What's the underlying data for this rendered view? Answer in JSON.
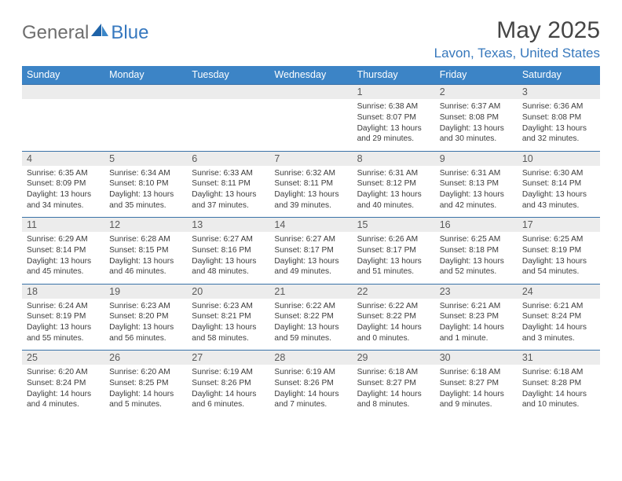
{
  "logo": {
    "general": "General",
    "blue": "Blue"
  },
  "title": "May 2025",
  "location": "Lavon, Texas, United States",
  "colors": {
    "header_bg": "#3c84c6",
    "header_text": "#ffffff",
    "daynum_bg": "#ececec",
    "daynum_border": "#3a72a8",
    "location_color": "#3778bc",
    "title_color": "#454545",
    "body_text": "#3c3c3c"
  },
  "day_headers": [
    "Sunday",
    "Monday",
    "Tuesday",
    "Wednesday",
    "Thursday",
    "Friday",
    "Saturday"
  ],
  "weeks": [
    {
      "nums": [
        "",
        "",
        "",
        "",
        "1",
        "2",
        "3"
      ],
      "cells": [
        {
          "empty": true
        },
        {
          "empty": true
        },
        {
          "empty": true
        },
        {
          "empty": true
        },
        {
          "sunrise": "Sunrise: 6:38 AM",
          "sunset": "Sunset: 8:07 PM",
          "daylight1": "Daylight: 13 hours",
          "daylight2": "and 29 minutes."
        },
        {
          "sunrise": "Sunrise: 6:37 AM",
          "sunset": "Sunset: 8:08 PM",
          "daylight1": "Daylight: 13 hours",
          "daylight2": "and 30 minutes."
        },
        {
          "sunrise": "Sunrise: 6:36 AM",
          "sunset": "Sunset: 8:08 PM",
          "daylight1": "Daylight: 13 hours",
          "daylight2": "and 32 minutes."
        }
      ]
    },
    {
      "nums": [
        "4",
        "5",
        "6",
        "7",
        "8",
        "9",
        "10"
      ],
      "cells": [
        {
          "sunrise": "Sunrise: 6:35 AM",
          "sunset": "Sunset: 8:09 PM",
          "daylight1": "Daylight: 13 hours",
          "daylight2": "and 34 minutes."
        },
        {
          "sunrise": "Sunrise: 6:34 AM",
          "sunset": "Sunset: 8:10 PM",
          "daylight1": "Daylight: 13 hours",
          "daylight2": "and 35 minutes."
        },
        {
          "sunrise": "Sunrise: 6:33 AM",
          "sunset": "Sunset: 8:11 PM",
          "daylight1": "Daylight: 13 hours",
          "daylight2": "and 37 minutes."
        },
        {
          "sunrise": "Sunrise: 6:32 AM",
          "sunset": "Sunset: 8:11 PM",
          "daylight1": "Daylight: 13 hours",
          "daylight2": "and 39 minutes."
        },
        {
          "sunrise": "Sunrise: 6:31 AM",
          "sunset": "Sunset: 8:12 PM",
          "daylight1": "Daylight: 13 hours",
          "daylight2": "and 40 minutes."
        },
        {
          "sunrise": "Sunrise: 6:31 AM",
          "sunset": "Sunset: 8:13 PM",
          "daylight1": "Daylight: 13 hours",
          "daylight2": "and 42 minutes."
        },
        {
          "sunrise": "Sunrise: 6:30 AM",
          "sunset": "Sunset: 8:14 PM",
          "daylight1": "Daylight: 13 hours",
          "daylight2": "and 43 minutes."
        }
      ]
    },
    {
      "nums": [
        "11",
        "12",
        "13",
        "14",
        "15",
        "16",
        "17"
      ],
      "cells": [
        {
          "sunrise": "Sunrise: 6:29 AM",
          "sunset": "Sunset: 8:14 PM",
          "daylight1": "Daylight: 13 hours",
          "daylight2": "and 45 minutes."
        },
        {
          "sunrise": "Sunrise: 6:28 AM",
          "sunset": "Sunset: 8:15 PM",
          "daylight1": "Daylight: 13 hours",
          "daylight2": "and 46 minutes."
        },
        {
          "sunrise": "Sunrise: 6:27 AM",
          "sunset": "Sunset: 8:16 PM",
          "daylight1": "Daylight: 13 hours",
          "daylight2": "and 48 minutes."
        },
        {
          "sunrise": "Sunrise: 6:27 AM",
          "sunset": "Sunset: 8:17 PM",
          "daylight1": "Daylight: 13 hours",
          "daylight2": "and 49 minutes."
        },
        {
          "sunrise": "Sunrise: 6:26 AM",
          "sunset": "Sunset: 8:17 PM",
          "daylight1": "Daylight: 13 hours",
          "daylight2": "and 51 minutes."
        },
        {
          "sunrise": "Sunrise: 6:25 AM",
          "sunset": "Sunset: 8:18 PM",
          "daylight1": "Daylight: 13 hours",
          "daylight2": "and 52 minutes."
        },
        {
          "sunrise": "Sunrise: 6:25 AM",
          "sunset": "Sunset: 8:19 PM",
          "daylight1": "Daylight: 13 hours",
          "daylight2": "and 54 minutes."
        }
      ]
    },
    {
      "nums": [
        "18",
        "19",
        "20",
        "21",
        "22",
        "23",
        "24"
      ],
      "cells": [
        {
          "sunrise": "Sunrise: 6:24 AM",
          "sunset": "Sunset: 8:19 PM",
          "daylight1": "Daylight: 13 hours",
          "daylight2": "and 55 minutes."
        },
        {
          "sunrise": "Sunrise: 6:23 AM",
          "sunset": "Sunset: 8:20 PM",
          "daylight1": "Daylight: 13 hours",
          "daylight2": "and 56 minutes."
        },
        {
          "sunrise": "Sunrise: 6:23 AM",
          "sunset": "Sunset: 8:21 PM",
          "daylight1": "Daylight: 13 hours",
          "daylight2": "and 58 minutes."
        },
        {
          "sunrise": "Sunrise: 6:22 AM",
          "sunset": "Sunset: 8:22 PM",
          "daylight1": "Daylight: 13 hours",
          "daylight2": "and 59 minutes."
        },
        {
          "sunrise": "Sunrise: 6:22 AM",
          "sunset": "Sunset: 8:22 PM",
          "daylight1": "Daylight: 14 hours",
          "daylight2": "and 0 minutes."
        },
        {
          "sunrise": "Sunrise: 6:21 AM",
          "sunset": "Sunset: 8:23 PM",
          "daylight1": "Daylight: 14 hours",
          "daylight2": "and 1 minute."
        },
        {
          "sunrise": "Sunrise: 6:21 AM",
          "sunset": "Sunset: 8:24 PM",
          "daylight1": "Daylight: 14 hours",
          "daylight2": "and 3 minutes."
        }
      ]
    },
    {
      "nums": [
        "25",
        "26",
        "27",
        "28",
        "29",
        "30",
        "31"
      ],
      "cells": [
        {
          "sunrise": "Sunrise: 6:20 AM",
          "sunset": "Sunset: 8:24 PM",
          "daylight1": "Daylight: 14 hours",
          "daylight2": "and 4 minutes."
        },
        {
          "sunrise": "Sunrise: 6:20 AM",
          "sunset": "Sunset: 8:25 PM",
          "daylight1": "Daylight: 14 hours",
          "daylight2": "and 5 minutes."
        },
        {
          "sunrise": "Sunrise: 6:19 AM",
          "sunset": "Sunset: 8:26 PM",
          "daylight1": "Daylight: 14 hours",
          "daylight2": "and 6 minutes."
        },
        {
          "sunrise": "Sunrise: 6:19 AM",
          "sunset": "Sunset: 8:26 PM",
          "daylight1": "Daylight: 14 hours",
          "daylight2": "and 7 minutes."
        },
        {
          "sunrise": "Sunrise: 6:18 AM",
          "sunset": "Sunset: 8:27 PM",
          "daylight1": "Daylight: 14 hours",
          "daylight2": "and 8 minutes."
        },
        {
          "sunrise": "Sunrise: 6:18 AM",
          "sunset": "Sunset: 8:27 PM",
          "daylight1": "Daylight: 14 hours",
          "daylight2": "and 9 minutes."
        },
        {
          "sunrise": "Sunrise: 6:18 AM",
          "sunset": "Sunset: 8:28 PM",
          "daylight1": "Daylight: 14 hours",
          "daylight2": "and 10 minutes."
        }
      ]
    }
  ]
}
